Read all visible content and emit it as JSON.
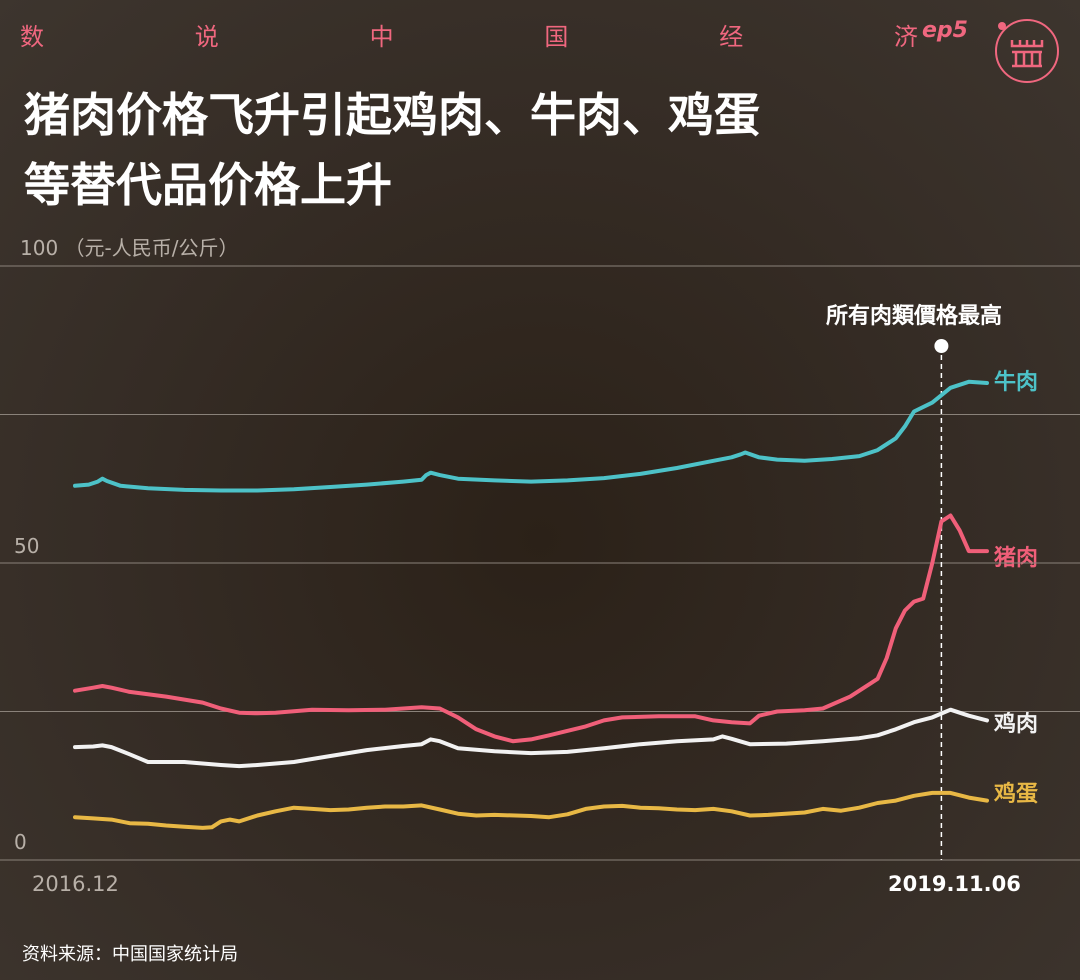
{
  "header": {
    "series_chars": [
      "数",
      "说",
      "中",
      "国",
      "经",
      "济"
    ],
    "episode": "ep5",
    "accent_color": "#f0677f"
  },
  "title_lines": [
    "猪肉价格飞升引起鸡肉、牛肉、鸡蛋",
    "等替代品价格上升"
  ],
  "unit_label": "100 （元-人民币/公斤）",
  "source": "资料来源：中国国家统计局",
  "chart_data": {
    "type": "line",
    "title": "猪肉价格飞升引起鸡肉、牛肉、鸡蛋等替代品价格上升",
    "ylabel": "（元-人民币/公斤）",
    "ylim": [
      0,
      100
    ],
    "yticks": [
      {
        "value": 0,
        "label": "0"
      },
      {
        "value": 50,
        "label": "50"
      }
    ],
    "gridlines": [
      0,
      25,
      50,
      75,
      100
    ],
    "x_start": "2016.12",
    "x_end": "2019.11.06",
    "annotation": {
      "label": "所有肉類價格最高",
      "x": 0.95
    },
    "series": [
      {
        "name": "牛肉",
        "color": "#4dc2c8",
        "points": [
          [
            0.0,
            63.0
          ],
          [
            0.015,
            63.2
          ],
          [
            0.025,
            63.7
          ],
          [
            0.03,
            64.2
          ],
          [
            0.035,
            63.8
          ],
          [
            0.05,
            63.0
          ],
          [
            0.08,
            62.6
          ],
          [
            0.12,
            62.3
          ],
          [
            0.16,
            62.2
          ],
          [
            0.2,
            62.2
          ],
          [
            0.24,
            62.4
          ],
          [
            0.28,
            62.8
          ],
          [
            0.32,
            63.2
          ],
          [
            0.36,
            63.7
          ],
          [
            0.38,
            64.0
          ],
          [
            0.385,
            64.8
          ],
          [
            0.39,
            65.2
          ],
          [
            0.4,
            64.8
          ],
          [
            0.42,
            64.2
          ],
          [
            0.46,
            63.9
          ],
          [
            0.5,
            63.7
          ],
          [
            0.54,
            63.9
          ],
          [
            0.58,
            64.3
          ],
          [
            0.62,
            65.0
          ],
          [
            0.66,
            66.0
          ],
          [
            0.7,
            67.2
          ],
          [
            0.72,
            67.8
          ],
          [
            0.73,
            68.3
          ],
          [
            0.735,
            68.6
          ],
          [
            0.75,
            67.8
          ],
          [
            0.77,
            67.4
          ],
          [
            0.8,
            67.2
          ],
          [
            0.83,
            67.5
          ],
          [
            0.86,
            68.0
          ],
          [
            0.88,
            69.0
          ],
          [
            0.9,
            71.0
          ],
          [
            0.91,
            73.0
          ],
          [
            0.92,
            75.5
          ],
          [
            0.94,
            77.0
          ],
          [
            0.96,
            79.5
          ],
          [
            0.98,
            80.5
          ],
          [
            1.0,
            80.3
          ]
        ]
      },
      {
        "name": "猪肉",
        "color": "#f05f79",
        "points": [
          [
            0.0,
            28.5
          ],
          [
            0.02,
            29.0
          ],
          [
            0.03,
            29.3
          ],
          [
            0.04,
            29.0
          ],
          [
            0.06,
            28.3
          ],
          [
            0.1,
            27.5
          ],
          [
            0.14,
            26.5
          ],
          [
            0.16,
            25.5
          ],
          [
            0.18,
            24.8
          ],
          [
            0.2,
            24.7
          ],
          [
            0.22,
            24.8
          ],
          [
            0.26,
            25.3
          ],
          [
            0.3,
            25.2
          ],
          [
            0.34,
            25.3
          ],
          [
            0.38,
            25.7
          ],
          [
            0.4,
            25.5
          ],
          [
            0.42,
            24.0
          ],
          [
            0.44,
            22.0
          ],
          [
            0.46,
            20.8
          ],
          [
            0.48,
            20.0
          ],
          [
            0.5,
            20.3
          ],
          [
            0.52,
            21.0
          ],
          [
            0.56,
            22.5
          ],
          [
            0.58,
            23.5
          ],
          [
            0.6,
            24.0
          ],
          [
            0.64,
            24.2
          ],
          [
            0.68,
            24.2
          ],
          [
            0.7,
            23.5
          ],
          [
            0.72,
            23.2
          ],
          [
            0.74,
            23.0
          ],
          [
            0.75,
            24.3
          ],
          [
            0.77,
            25.0
          ],
          [
            0.8,
            25.2
          ],
          [
            0.82,
            25.5
          ],
          [
            0.85,
            27.5
          ],
          [
            0.87,
            29.5
          ],
          [
            0.88,
            30.5
          ],
          [
            0.89,
            34.0
          ],
          [
            0.9,
            39.0
          ],
          [
            0.91,
            42.0
          ],
          [
            0.92,
            43.5
          ],
          [
            0.93,
            44.0
          ],
          [
            0.94,
            50.0
          ],
          [
            0.95,
            57.0
          ],
          [
            0.96,
            58.0
          ],
          [
            0.97,
            55.5
          ],
          [
            0.98,
            52.0
          ],
          [
            1.0,
            52.0
          ]
        ]
      },
      {
        "name": "鸡肉",
        "color": "#f2f2f2",
        "points": [
          [
            0.0,
            19.0
          ],
          [
            0.02,
            19.1
          ],
          [
            0.03,
            19.3
          ],
          [
            0.04,
            19.0
          ],
          [
            0.06,
            17.8
          ],
          [
            0.08,
            16.5
          ],
          [
            0.12,
            16.5
          ],
          [
            0.16,
            16.0
          ],
          [
            0.18,
            15.8
          ],
          [
            0.2,
            16.0
          ],
          [
            0.24,
            16.5
          ],
          [
            0.28,
            17.5
          ],
          [
            0.32,
            18.5
          ],
          [
            0.36,
            19.2
          ],
          [
            0.38,
            19.5
          ],
          [
            0.39,
            20.3
          ],
          [
            0.4,
            20.0
          ],
          [
            0.42,
            18.8
          ],
          [
            0.46,
            18.3
          ],
          [
            0.5,
            18.0
          ],
          [
            0.54,
            18.2
          ],
          [
            0.58,
            18.8
          ],
          [
            0.62,
            19.5
          ],
          [
            0.66,
            20.0
          ],
          [
            0.7,
            20.3
          ],
          [
            0.71,
            20.8
          ],
          [
            0.72,
            20.4
          ],
          [
            0.74,
            19.5
          ],
          [
            0.78,
            19.6
          ],
          [
            0.82,
            20.0
          ],
          [
            0.86,
            20.5
          ],
          [
            0.88,
            21.0
          ],
          [
            0.9,
            22.0
          ],
          [
            0.92,
            23.2
          ],
          [
            0.94,
            24.0
          ],
          [
            0.96,
            25.3
          ],
          [
            0.98,
            24.3
          ],
          [
            1.0,
            23.5
          ]
        ]
      },
      {
        "name": "鸡蛋",
        "color": "#e8b845",
        "points": [
          [
            0.0,
            7.2
          ],
          [
            0.02,
            7.0
          ],
          [
            0.04,
            6.8
          ],
          [
            0.06,
            6.2
          ],
          [
            0.08,
            6.1
          ],
          [
            0.1,
            5.8
          ],
          [
            0.12,
            5.6
          ],
          [
            0.14,
            5.4
          ],
          [
            0.15,
            5.5
          ],
          [
            0.16,
            6.5
          ],
          [
            0.17,
            6.8
          ],
          [
            0.18,
            6.5
          ],
          [
            0.2,
            7.5
          ],
          [
            0.22,
            8.2
          ],
          [
            0.24,
            8.8
          ],
          [
            0.26,
            8.6
          ],
          [
            0.28,
            8.4
          ],
          [
            0.3,
            8.5
          ],
          [
            0.32,
            8.8
          ],
          [
            0.34,
            9.0
          ],
          [
            0.36,
            9.0
          ],
          [
            0.38,
            9.2
          ],
          [
            0.4,
            8.5
          ],
          [
            0.42,
            7.8
          ],
          [
            0.44,
            7.5
          ],
          [
            0.46,
            7.6
          ],
          [
            0.5,
            7.4
          ],
          [
            0.52,
            7.2
          ],
          [
            0.54,
            7.7
          ],
          [
            0.56,
            8.6
          ],
          [
            0.58,
            9.0
          ],
          [
            0.6,
            9.1
          ],
          [
            0.62,
            8.8
          ],
          [
            0.64,
            8.7
          ],
          [
            0.66,
            8.5
          ],
          [
            0.68,
            8.4
          ],
          [
            0.7,
            8.6
          ],
          [
            0.72,
            8.2
          ],
          [
            0.74,
            7.5
          ],
          [
            0.76,
            7.6
          ],
          [
            0.8,
            8.0
          ],
          [
            0.82,
            8.6
          ],
          [
            0.84,
            8.3
          ],
          [
            0.86,
            8.8
          ],
          [
            0.88,
            9.6
          ],
          [
            0.9,
            10.0
          ],
          [
            0.92,
            10.8
          ],
          [
            0.94,
            11.3
          ],
          [
            0.96,
            11.3
          ],
          [
            0.98,
            10.5
          ],
          [
            1.0,
            10.0
          ]
        ]
      }
    ]
  }
}
